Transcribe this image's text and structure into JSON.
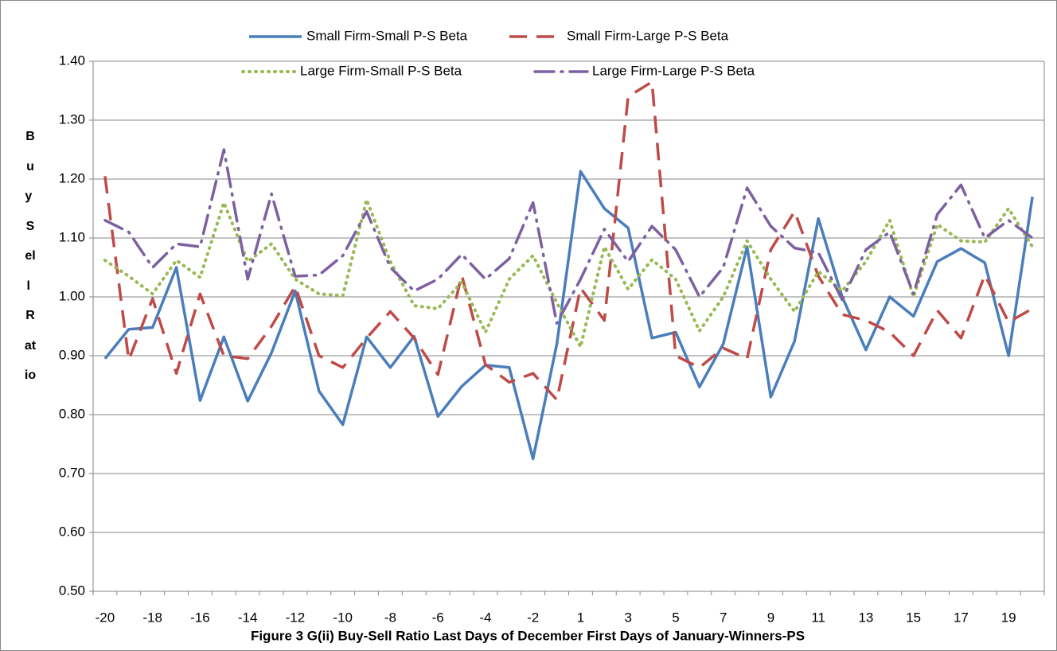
{
  "chart_data": {
    "type": "line",
    "title": "Figure 3 G(ii) Buy-Sell Ratio Last Days of December First Days of January-Winners-PS",
    "y_label": "Buy Sell Ratio",
    "categories": [
      "-20",
      null,
      "-18",
      null,
      "-16",
      null,
      "-14",
      null,
      "-12",
      null,
      "-10",
      null,
      "-8",
      null,
      "-6",
      null,
      "-4",
      null,
      "-2",
      null,
      "1",
      null,
      "3",
      null,
      "5",
      null,
      "7",
      null,
      "9",
      null,
      "11",
      null,
      "13",
      null,
      "15",
      null,
      "17",
      null,
      "19",
      null
    ],
    "ylim": [
      0.5,
      1.4
    ],
    "yticks": [
      {
        "value": 0.5,
        "label": "0.50"
      },
      {
        "value": 0.6,
        "label": "0.60"
      },
      {
        "value": 0.7,
        "label": "0.70"
      },
      {
        "value": 0.8,
        "label": "0.80"
      },
      {
        "value": 0.9,
        "label": "0.90"
      },
      {
        "value": 1.0,
        "label": "1.00"
      },
      {
        "value": 1.1,
        "label": "1.10"
      },
      {
        "value": 1.2,
        "label": "1.20"
      },
      {
        "value": 1.3,
        "label": "1.30"
      },
      {
        "value": 1.4,
        "label": "1.40"
      }
    ],
    "grid": true,
    "legend": "top",
    "series": [
      {
        "name": "Small Firm-Small P-S Beta",
        "color": "#4a7ebb",
        "dash": "solid",
        "values": [
          0.895,
          0.945,
          0.948,
          1.05,
          0.824,
          0.932,
          0.823,
          0.905,
          1.01,
          0.84,
          0.783,
          0.932,
          0.88,
          0.933,
          0.797,
          0.848,
          0.884,
          0.88,
          0.725,
          0.92,
          1.213,
          1.15,
          1.117,
          0.93,
          0.94,
          0.847,
          0.92,
          1.085,
          0.83,
          0.925,
          1.133,
          1.0,
          0.91,
          1.0,
          0.967,
          1.06,
          1.082,
          1.058,
          0.9,
          1.17
        ]
      },
      {
        "name": "Small Firm-Large P-S Beta",
        "color": "#be4b48",
        "dash": "dashed",
        "values": [
          1.205,
          0.893,
          0.997,
          0.87,
          1.005,
          0.9,
          0.895,
          0.95,
          1.018,
          0.9,
          0.88,
          0.93,
          0.975,
          0.93,
          0.868,
          1.037,
          0.885,
          0.855,
          0.87,
          0.825,
          1.015,
          0.96,
          1.34,
          1.365,
          0.9,
          0.88,
          0.913,
          0.895,
          1.08,
          1.145,
          1.035,
          0.97,
          0.96,
          0.94,
          0.9,
          0.977,
          0.93,
          1.037,
          0.957,
          0.98
        ]
      },
      {
        "name": "Large Firm-Small P-S Beta",
        "color": "#98b954",
        "dash": "dotted",
        "values": [
          1.062,
          1.035,
          1.005,
          1.062,
          1.033,
          1.16,
          1.06,
          1.09,
          1.03,
          1.005,
          1.002,
          1.165,
          1.06,
          0.985,
          0.98,
          1.025,
          0.94,
          1.03,
          1.07,
          0.99,
          0.915,
          1.085,
          1.013,
          1.063,
          1.03,
          0.942,
          1.0,
          1.095,
          1.03,
          0.975,
          1.043,
          1.01,
          1.06,
          1.13,
          1.0,
          1.123,
          1.095,
          1.093,
          1.15,
          1.085
        ]
      },
      {
        "name": "Large Firm-Large P-S Beta",
        "color": "#7d60a0",
        "dash": "dashdot",
        "values": [
          1.13,
          1.11,
          1.05,
          1.09,
          1.085,
          1.25,
          1.03,
          1.175,
          1.035,
          1.037,
          1.07,
          1.145,
          1.05,
          1.01,
          1.03,
          1.072,
          1.03,
          1.065,
          1.16,
          0.955,
          1.03,
          1.115,
          1.06,
          1.12,
          1.08,
          1.0,
          1.05,
          1.185,
          1.12,
          1.083,
          1.075,
          0.995,
          1.08,
          1.11,
          1.005,
          1.14,
          1.19,
          1.1,
          1.13,
          1.1
        ]
      }
    ]
  }
}
